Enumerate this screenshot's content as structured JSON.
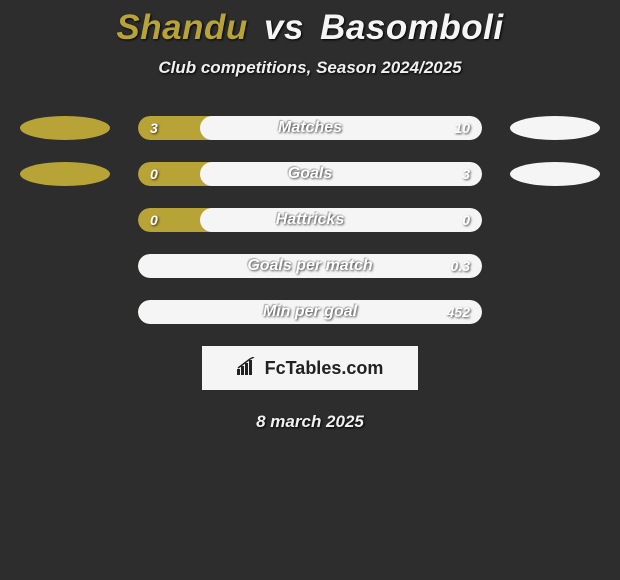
{
  "title": {
    "player1": "Shandu",
    "vs": "vs",
    "player2": "Basomboli",
    "player1_color": "#b8a336",
    "player2_color": "#f5f5f5"
  },
  "subtitle": "Club competitions, Season 2024/2025",
  "background_color": "#2d2d2d",
  "bar_left_color": "#b8a336",
  "bar_right_color": "#f5f5f5",
  "stats": [
    {
      "label": "Matches",
      "left_val": "3",
      "right_val": "10",
      "right_pct": 82,
      "show_ovals": true
    },
    {
      "label": "Goals",
      "left_val": "0",
      "right_val": "3",
      "right_pct": 82,
      "show_ovals": true
    },
    {
      "label": "Hattricks",
      "left_val": "0",
      "right_val": "0",
      "right_pct": 82,
      "show_ovals": false
    },
    {
      "label": "Goals per match",
      "left_val": "",
      "right_val": "0.3",
      "right_pct": 100,
      "show_ovals": false
    },
    {
      "label": "Min per goal",
      "left_val": "",
      "right_val": "452",
      "right_pct": 100,
      "show_ovals": false
    }
  ],
  "brand": "FcTables.com",
  "date": "8 march 2025"
}
